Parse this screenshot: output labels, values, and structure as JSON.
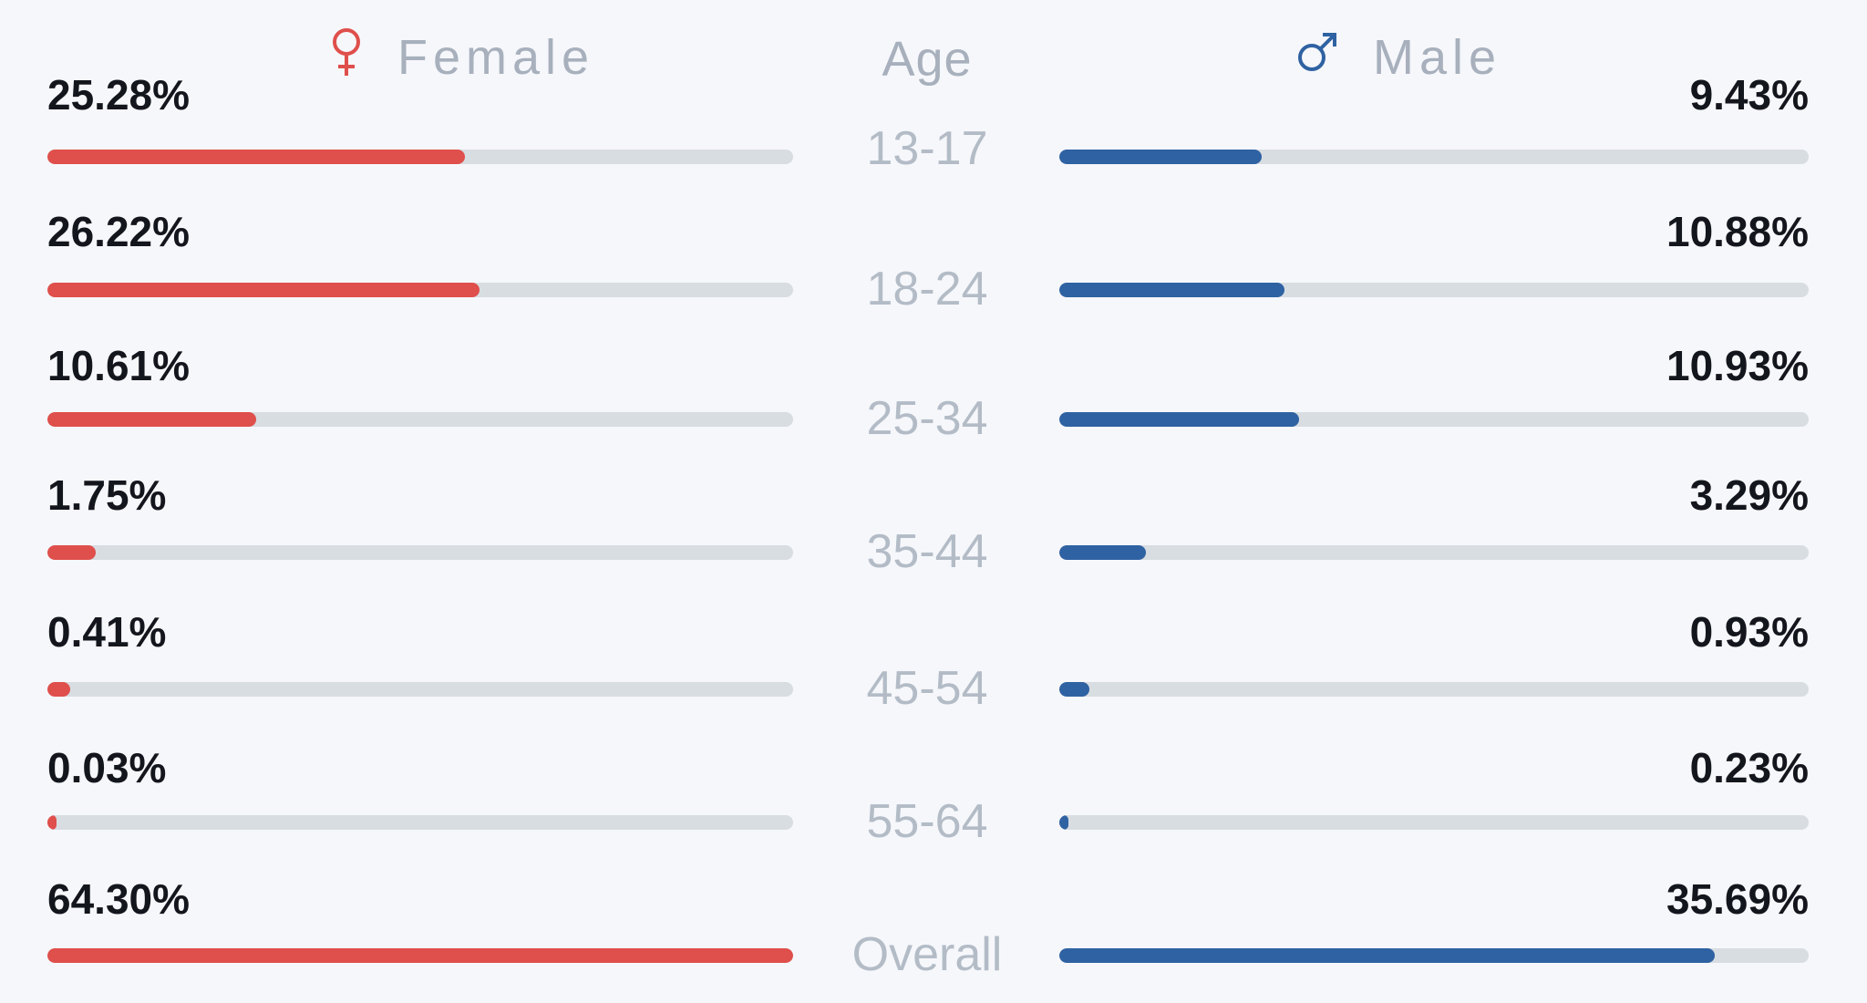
{
  "chart_data": {
    "type": "bar",
    "headers": {
      "female": "Female",
      "age": "Age",
      "male": "Male"
    },
    "categories": [
      "13-17",
      "18-24",
      "25-34",
      "35-44",
      "45-54",
      "55-64",
      "Overall"
    ],
    "series": [
      {
        "name": "Female",
        "values": [
          25.28,
          26.22,
          10.61,
          1.75,
          0.41,
          0.03,
          64.3
        ],
        "labels": [
          "25.28%",
          "26.22%",
          "10.61%",
          "1.75%",
          "0.41%",
          "0.03%",
          "64.30%"
        ],
        "color": "#df4f4b",
        "bar_fill_fraction": [
          0.56,
          0.58,
          0.28,
          0.065,
          0.03,
          0.01,
          1.0
        ]
      },
      {
        "name": "Male",
        "values": [
          9.43,
          10.88,
          10.93,
          3.29,
          0.93,
          0.23,
          35.69
        ],
        "labels": [
          "9.43%",
          "10.88%",
          "10.93%",
          "3.29%",
          "0.93%",
          "0.23%",
          "35.69%"
        ],
        "color": "#2f62a2",
        "bar_fill_fraction": [
          0.27,
          0.3,
          0.32,
          0.115,
          0.04,
          0.01,
          0.875
        ]
      }
    ],
    "track_color": "#d8dde2",
    "header_color": "#a7b0bc",
    "female_icon": "female-symbol-icon",
    "male_icon": "male-symbol-icon"
  }
}
